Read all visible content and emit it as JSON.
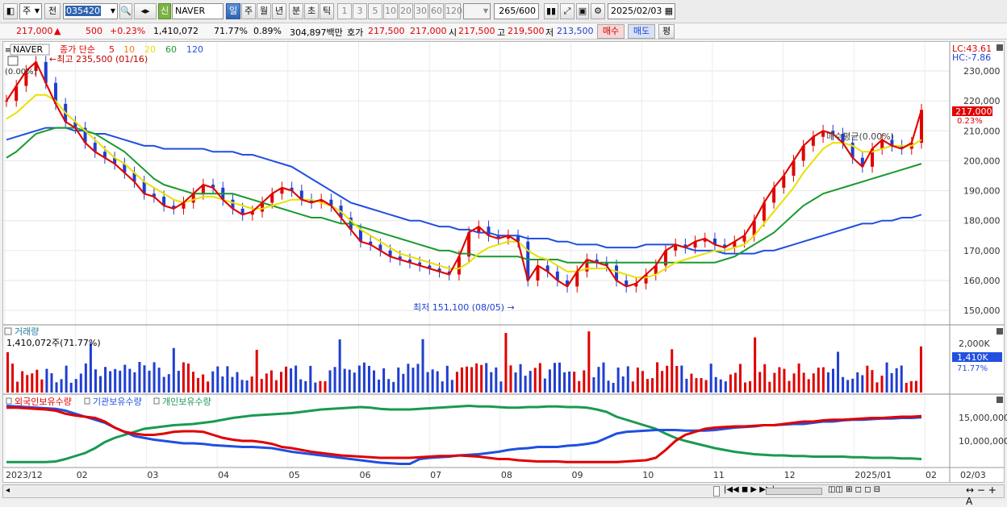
{
  "toolbar": {
    "type_sel": "주",
    "jeon_label": "전",
    "code": "035420",
    "name_badge": "신",
    "name": "NAVER",
    "periods": [
      "일",
      "주",
      "월",
      "년",
      "분",
      "초",
      "틱"
    ],
    "intervals": [
      "1",
      "3",
      "5",
      "10",
      "20",
      "30",
      "60",
      "120"
    ],
    "count": "265",
    "count_max": "/600",
    "date": "2025/02/03"
  },
  "quote": {
    "price": "217,000",
    "arrow": "▲",
    "change": "500",
    "change_pct": "+0.23%",
    "volume": "1,410,072",
    "vol_ratio": "71.77%",
    "turnover_pct": "0.89%",
    "amount": "304,897백만",
    "ask_label": "호가",
    "ask1": "217,500",
    "ask2": "217,000",
    "open_label": "시",
    "open": "217,500",
    "high_label": "고",
    "high": "219,500",
    "low_label": "저",
    "low": "213,500",
    "buy_label": "매수",
    "sell_label": "매도",
    "avg_label": "평"
  },
  "price_panel": {
    "symbol": "NAVER",
    "legend_prefix": "종가 단순",
    "ma": [
      {
        "period": "5",
        "color": "#e00000"
      },
      {
        "period": "10",
        "color": "#f08010"
      },
      {
        "period": "20",
        "color": "#e8e000"
      },
      {
        "period": "60",
        "color": "#1a9a30"
      },
      {
        "period": "120",
        "color": "#2050e0"
      }
    ],
    "top_left": "(0.00%)",
    "high_note": "←최고 235,500 (01/16)",
    "low_note": "최저 151,100 (08/05) →",
    "mid_note": "매수평균(0.00%)",
    "lc": "LC:43.61",
    "hc": "HC:-7.86",
    "price_tag": "217,000",
    "price_tag_pct": "0.23%"
  },
  "volume_panel": {
    "title": "거래량",
    "value": "1,410,072주(71.77%)",
    "tag": "1,410K",
    "tag_pct": "71.77%",
    "axis": [
      "2,000K"
    ]
  },
  "holding_panel": {
    "legend": [
      {
        "label": "외국인보유수량",
        "color": "#e00000"
      },
      {
        "label": "기관보유수량",
        "color": "#2050e0"
      },
      {
        "label": "개인보유수량",
        "color": "#1a9a50"
      }
    ],
    "axis": [
      "15,000,000",
      "10,000,000"
    ]
  },
  "chart_data": {
    "type": "line",
    "y_axis": {
      "labels": [
        "230,000",
        "220,000",
        "210,000",
        "200,000",
        "190,000",
        "180,000",
        "170,000",
        "160,000",
        "150,000"
      ],
      "range": [
        146000,
        237000
      ]
    },
    "x_axis": {
      "labels": [
        "2023/12",
        "02",
        "03",
        "04",
        "05",
        "06",
        "07",
        "08",
        "09",
        "10",
        "11",
        "12",
        "2025/01",
        "02",
        "02/03"
      ]
    },
    "close": [
      220000,
      225000,
      230000,
      233000,
      226000,
      219000,
      213000,
      211000,
      206000,
      203000,
      201000,
      199000,
      196000,
      193000,
      189000,
      188000,
      185000,
      184000,
      186000,
      189000,
      192000,
      191000,
      187000,
      184000,
      182000,
      183000,
      186000,
      189000,
      191000,
      190000,
      187000,
      186000,
      187000,
      185000,
      181000,
      177000,
      173000,
      172000,
      170000,
      168000,
      167000,
      166000,
      165000,
      164000,
      163000,
      162000,
      168000,
      176000,
      178000,
      175000,
      174000,
      175000,
      173000,
      160000,
      165000,
      163000,
      160000,
      158000,
      163000,
      167000,
      166000,
      165000,
      160000,
      158000,
      159000,
      162000,
      165000,
      170000,
      172000,
      171000,
      173000,
      174000,
      172000,
      171000,
      173000,
      175000,
      180000,
      186000,
      191000,
      195000,
      200000,
      205000,
      208000,
      210000,
      209000,
      206000,
      201000,
      198000,
      204000,
      207000,
      205000,
      204000,
      206000,
      217000
    ],
    "ma20": [
      214000,
      216000,
      219000,
      222000,
      222000,
      220000,
      216000,
      213000,
      210000,
      207000,
      204000,
      201000,
      199000,
      196000,
      193000,
      191000,
      189000,
      187000,
      186000,
      187000,
      188000,
      188000,
      187000,
      186000,
      185000,
      184000,
      184000,
      185000,
      186000,
      187000,
      187000,
      187000,
      186000,
      185000,
      183000,
      180000,
      177000,
      175000,
      173000,
      171000,
      169000,
      168000,
      167000,
      166000,
      165000,
      164000,
      164000,
      166000,
      169000,
      171000,
      172000,
      173000,
      173000,
      170000,
      168000,
      167000,
      165000,
      163000,
      163000,
      164000,
      164000,
      164000,
      163000,
      162000,
      161000,
      161000,
      162000,
      164000,
      166000,
      167000,
      168000,
      169000,
      170000,
      170000,
      171000,
      172000,
      175000,
      179000,
      183000,
      187000,
      191000,
      196000,
      200000,
      204000,
      206000,
      206000,
      205000,
      203000,
      203000,
      204000,
      205000,
      205000,
      205000,
      207000
    ],
    "ma60": [
      201000,
      203000,
      206000,
      209000,
      210000,
      211000,
      211000,
      211000,
      210000,
      209000,
      207000,
      205000,
      203000,
      200000,
      197000,
      194000,
      192000,
      191000,
      190000,
      189000,
      189000,
      189000,
      189000,
      189000,
      188000,
      187000,
      186000,
      185000,
      184000,
      183000,
      182000,
      181000,
      181000,
      180000,
      179000,
      179000,
      178000,
      177000,
      176000,
      175000,
      174000,
      173000,
      172000,
      171000,
      170000,
      170000,
      169000,
      169000,
      168000,
      168000,
      168000,
      168000,
      168000,
      167000,
      167000,
      167000,
      167000,
      166000,
      166000,
      166000,
      166000,
      166000,
      166000,
      166000,
      166000,
      166000,
      166000,
      166000,
      166000,
      166000,
      166000,
      166000,
      166000,
      167000,
      168000,
      170000,
      172000,
      174000,
      176000,
      179000,
      182000,
      185000,
      187000,
      189000,
      190000,
      191000,
      192000,
      193000,
      194000,
      195000,
      196000,
      197000,
      198000,
      199000
    ],
    "ma120": [
      207000,
      208000,
      209000,
      210000,
      211000,
      211000,
      211000,
      210000,
      210000,
      209000,
      209000,
      208000,
      207000,
      206000,
      205000,
      205000,
      204000,
      204000,
      204000,
      204000,
      204000,
      203000,
      203000,
      203000,
      202000,
      202000,
      201000,
      200000,
      199000,
      198000,
      196000,
      194000,
      192000,
      190000,
      188000,
      186000,
      185000,
      184000,
      183000,
      182000,
      181000,
      180000,
      180000,
      179000,
      178000,
      178000,
      177000,
      177000,
      176000,
      176000,
      175000,
      175000,
      175000,
      174000,
      174000,
      174000,
      173000,
      173000,
      172000,
      172000,
      172000,
      171000,
      171000,
      171000,
      171000,
      172000,
      172000,
      172000,
      172000,
      171000,
      170000,
      170000,
      170000,
      169000,
      169000,
      169000,
      169000,
      170000,
      170000,
      171000,
      172000,
      173000,
      174000,
      175000,
      176000,
      177000,
      178000,
      179000,
      179000,
      180000,
      180000,
      181000,
      181000,
      182000
    ],
    "foreign_holding_pct": [
      0.95,
      0.95,
      0.94,
      0.93,
      0.92,
      0.9,
      0.85,
      0.82,
      0.8,
      0.78,
      0.72,
      0.62,
      0.55,
      0.52,
      0.5,
      0.5,
      0.52,
      0.55,
      0.56,
      0.56,
      0.55,
      0.5,
      0.45,
      0.42,
      0.4,
      0.4,
      0.38,
      0.35,
      0.3,
      0.28,
      0.25,
      0.22,
      0.2,
      0.18,
      0.16,
      0.15,
      0.14,
      0.13,
      0.12,
      0.12,
      0.12,
      0.12,
      0.13,
      0.14,
      0.15,
      0.15,
      0.16,
      0.15,
      0.14,
      0.12,
      0.1,
      0.1,
      0.08,
      0.07,
      0.06,
      0.06,
      0.06,
      0.05,
      0.05,
      0.05,
      0.05,
      0.05,
      0.05,
      0.06,
      0.07,
      0.08,
      0.12,
      0.25,
      0.4,
      0.5,
      0.55,
      0.6,
      0.62,
      0.63,
      0.64,
      0.64,
      0.65,
      0.66,
      0.66,
      0.68,
      0.7,
      0.72,
      0.72,
      0.74,
      0.75,
      0.75,
      0.76,
      0.77,
      0.78,
      0.78,
      0.79,
      0.8,
      0.8,
      0.81
    ],
    "inst_holding_pct": [
      0.98,
      0.97,
      0.96,
      0.95,
      0.94,
      0.93,
      0.9,
      0.85,
      0.8,
      0.75,
      0.7,
      0.62,
      0.55,
      0.48,
      0.45,
      0.42,
      0.4,
      0.38,
      0.36,
      0.36,
      0.35,
      0.33,
      0.32,
      0.31,
      0.3,
      0.3,
      0.29,
      0.28,
      0.25,
      0.22,
      0.2,
      0.18,
      0.16,
      0.14,
      0.12,
      0.1,
      0.08,
      0.06,
      0.04,
      0.03,
      0.02,
      0.02,
      0.1,
      0.12,
      0.13,
      0.14,
      0.16,
      0.17,
      0.18,
      0.2,
      0.22,
      0.25,
      0.27,
      0.28,
      0.3,
      0.3,
      0.3,
      0.32,
      0.33,
      0.35,
      0.38,
      0.45,
      0.52,
      0.55,
      0.56,
      0.57,
      0.58,
      0.58,
      0.58,
      0.57,
      0.57,
      0.57,
      0.58,
      0.6,
      0.62,
      0.63,
      0.64,
      0.66,
      0.66,
      0.67,
      0.68,
      0.68,
      0.7,
      0.72,
      0.72,
      0.74,
      0.75,
      0.75,
      0.76,
      0.77,
      0.77,
      0.78,
      0.78,
      0.79
    ],
    "indiv_holding_pct": [
      0.05,
      0.05,
      0.05,
      0.05,
      0.05,
      0.06,
      0.1,
      0.15,
      0.2,
      0.28,
      0.38,
      0.45,
      0.5,
      0.55,
      0.6,
      0.62,
      0.64,
      0.66,
      0.67,
      0.68,
      0.7,
      0.72,
      0.75,
      0.78,
      0.8,
      0.82,
      0.83,
      0.84,
      0.85,
      0.86,
      0.88,
      0.9,
      0.92,
      0.93,
      0.94,
      0.95,
      0.96,
      0.95,
      0.93,
      0.92,
      0.92,
      0.92,
      0.93,
      0.94,
      0.95,
      0.96,
      0.97,
      0.98,
      0.97,
      0.97,
      0.96,
      0.95,
      0.95,
      0.96,
      0.96,
      0.97,
      0.97,
      0.96,
      0.96,
      0.95,
      0.92,
      0.88,
      0.8,
      0.75,
      0.7,
      0.65,
      0.6,
      0.52,
      0.45,
      0.4,
      0.36,
      0.32,
      0.28,
      0.25,
      0.22,
      0.2,
      0.18,
      0.17,
      0.16,
      0.16,
      0.15,
      0.15,
      0.14,
      0.14,
      0.14,
      0.14,
      0.13,
      0.13,
      0.12,
      0.12,
      0.12,
      0.11,
      0.11,
      0.1
    ]
  }
}
